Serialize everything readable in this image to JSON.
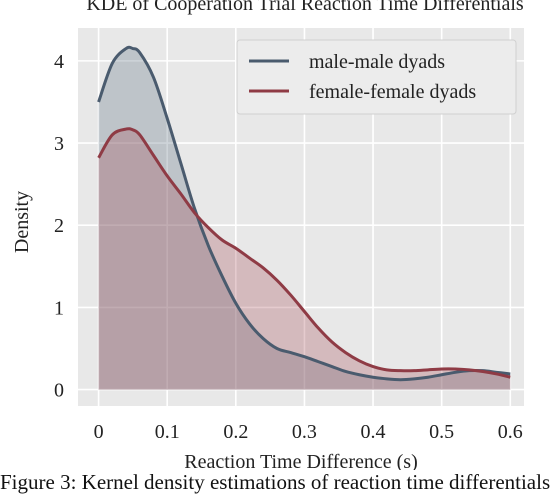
{
  "chart_data": {
    "type": "area",
    "title": "KDE of Cooperation Trial Reaction Time Differentials",
    "xlabel": "Reaction Time Difference (s)",
    "ylabel": "Density",
    "xlim": [
      -0.03,
      0.62
    ],
    "ylim": [
      -0.2,
      4.4
    ],
    "xticks": [
      0,
      0.1,
      0.2,
      0.3,
      0.4,
      0.5,
      0.6
    ],
    "xtick_labels": [
      "0",
      "0.1",
      "0.2",
      "0.3",
      "0.4",
      "0.5",
      "0.6"
    ],
    "yticks": [
      0,
      1,
      2,
      3,
      4
    ],
    "ytick_labels": [
      "0",
      "1",
      "2",
      "3",
      "4"
    ],
    "grid": true,
    "legend_position": "top-right",
    "series": [
      {
        "name": "male-male dyads",
        "color": "#4a5b6e",
        "fill": "rgba(94,112,130,0.30)",
        "x": [
          0,
          0.02,
          0.04,
          0.05,
          0.06,
          0.08,
          0.1,
          0.12,
          0.14,
          0.16,
          0.18,
          0.2,
          0.22,
          0.24,
          0.26,
          0.28,
          0.3,
          0.32,
          0.34,
          0.36,
          0.38,
          0.4,
          0.42,
          0.44,
          0.46,
          0.48,
          0.5,
          0.52,
          0.54,
          0.56,
          0.58,
          0.6
        ],
        "y": [
          3.5,
          3.97,
          4.15,
          4.15,
          4.1,
          3.8,
          3.3,
          2.75,
          2.2,
          1.75,
          1.38,
          1.05,
          0.8,
          0.62,
          0.5,
          0.45,
          0.4,
          0.34,
          0.28,
          0.22,
          0.18,
          0.15,
          0.13,
          0.12,
          0.13,
          0.15,
          0.18,
          0.21,
          0.23,
          0.23,
          0.21,
          0.19
        ]
      },
      {
        "name": "female-female dyads",
        "color": "#8f3b45",
        "fill": "rgba(160,70,80,0.28)",
        "x": [
          0,
          0.02,
          0.04,
          0.05,
          0.06,
          0.08,
          0.1,
          0.12,
          0.14,
          0.16,
          0.18,
          0.2,
          0.22,
          0.24,
          0.26,
          0.28,
          0.3,
          0.32,
          0.34,
          0.36,
          0.38,
          0.4,
          0.42,
          0.44,
          0.46,
          0.48,
          0.5,
          0.52,
          0.54,
          0.56,
          0.58,
          0.6
        ],
        "y": [
          2.82,
          3.1,
          3.17,
          3.16,
          3.1,
          2.85,
          2.6,
          2.38,
          2.15,
          1.97,
          1.82,
          1.72,
          1.6,
          1.48,
          1.33,
          1.15,
          0.95,
          0.75,
          0.58,
          0.45,
          0.35,
          0.28,
          0.24,
          0.23,
          0.23,
          0.24,
          0.25,
          0.25,
          0.24,
          0.22,
          0.19,
          0.15
        ]
      }
    ]
  },
  "caption": "Figure 3: Kernel density estimations of reaction time differentials"
}
